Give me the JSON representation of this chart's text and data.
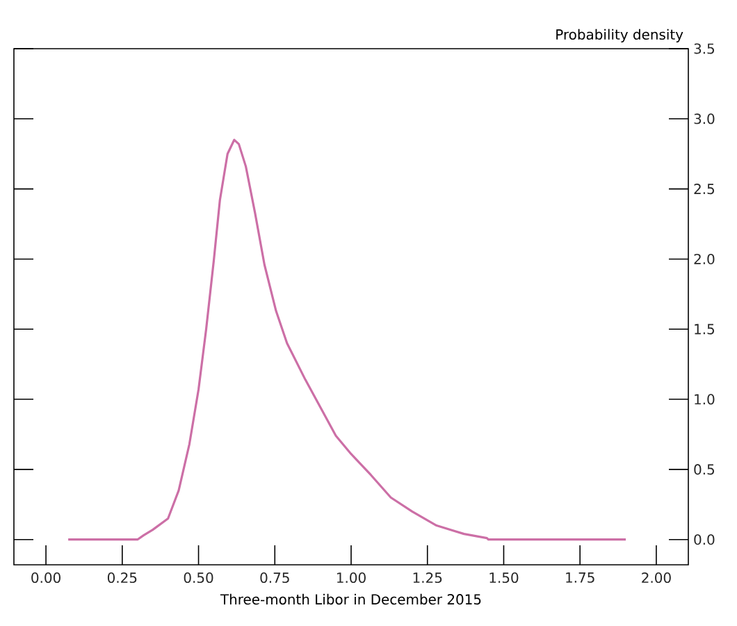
{
  "chart_data": {
    "type": "line",
    "xlabel": "Three-month Libor in December 2015",
    "ylabel": "Probability density",
    "color": "#cc6fa6",
    "x": [
      0.073,
      0.3,
      0.32,
      0.35,
      0.4,
      0.435,
      0.47,
      0.5,
      0.525,
      0.55,
      0.57,
      0.595,
      0.617,
      0.632,
      0.655,
      0.685,
      0.716,
      0.754,
      0.79,
      0.85,
      0.9,
      0.95,
      1.0,
      1.065,
      1.13,
      1.2,
      1.28,
      1.37,
      1.445,
      1.45,
      1.9
    ],
    "values": [
      0,
      0,
      0.03,
      0.07,
      0.15,
      0.35,
      0.68,
      1.07,
      1.5,
      1.99,
      2.42,
      2.75,
      2.85,
      2.82,
      2.66,
      2.33,
      1.96,
      1.63,
      1.4,
      1.14,
      0.94,
      0.74,
      0.61,
      0.46,
      0.3,
      0.2,
      0.1,
      0.04,
      0.01,
      0,
      0
    ],
    "xlim": [
      -0.105,
      2.105
    ],
    "ylim": [
      -0.18,
      3.5
    ],
    "xticks": [
      {
        "value": 0,
        "label": "0.00"
      },
      {
        "value": 0.25,
        "label": "0.25"
      },
      {
        "value": 0.5,
        "label": "0.50"
      },
      {
        "value": 0.75,
        "label": "0.75"
      },
      {
        "value": 1,
        "label": "1.00"
      },
      {
        "value": 1.25,
        "label": "1.25"
      },
      {
        "value": 1.5,
        "label": "1.50"
      },
      {
        "value": 1.75,
        "label": "1.75"
      },
      {
        "value": 2,
        "label": "2.00"
      }
    ],
    "yticks": [
      {
        "value": 0,
        "label": "0.0"
      },
      {
        "value": 0.5,
        "label": "0.5"
      },
      {
        "value": 1,
        "label": "1.0"
      },
      {
        "value": 1.5,
        "label": "1.5"
      },
      {
        "value": 2,
        "label": "2.0"
      },
      {
        "value": 2.5,
        "label": "2.5"
      },
      {
        "value": 3,
        "label": "3.0"
      },
      {
        "value": 3.5,
        "label": "3.5"
      }
    ]
  }
}
